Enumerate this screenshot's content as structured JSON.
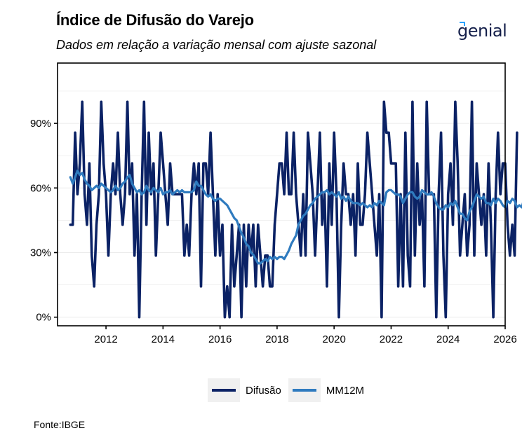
{
  "header": {
    "title": "Índice de Difusão do Varejo",
    "subtitle": "Dados em relação a variação mensal com ajuste sazonal",
    "logo_text": "genial"
  },
  "footer": {
    "source": "Fonte:IBGE"
  },
  "colors": {
    "difusao": "#0b2265",
    "mm12m": "#2f7bbf",
    "axis": "#000000",
    "grid": "#ebebeb",
    "legend_bg": "#f0f0f0"
  },
  "chart_data": {
    "type": "line",
    "title": "Índice de Difusão do Varejo",
    "subtitle": "Dados em relação a variação mensal com ajuste sazonal",
    "xlabel": "",
    "ylabel": "",
    "x_start": "2010-10",
    "x_frequency": "monthly",
    "xlim": [
      2010.3,
      2026.0
    ],
    "ylim": [
      -4,
      118
    ],
    "x_ticks": [
      2012,
      2014,
      2016,
      2018,
      2020,
      2022,
      2024,
      2026
    ],
    "x_tick_labels": [
      "2012",
      "2014",
      "2016",
      "2018",
      "2020",
      "2022",
      "2024",
      "2026"
    ],
    "y_ticks": [
      0,
      30,
      60,
      90
    ],
    "y_tick_labels": [
      "0%",
      "30%",
      "60%",
      "90%"
    ],
    "grid": true,
    "legend": {
      "position": "bottom",
      "entries": [
        "Difusão",
        "MM12M"
      ]
    },
    "series": [
      {
        "name": "Difusão",
        "values": [
          42.9,
          42.9,
          85.7,
          57.1,
          71.4,
          100,
          57.1,
          42.9,
          71.4,
          28.6,
          14.3,
          42.9,
          57.1,
          100,
          71.4,
          57.1,
          28.6,
          57.1,
          71.4,
          57.1,
          85.7,
          57.1,
          42.9,
          57.1,
          100,
          57.1,
          71.4,
          28.6,
          57.1,
          0,
          57.1,
          100,
          42.9,
          85.7,
          57.1,
          71.4,
          28.6,
          57.1,
          85.7,
          71.4,
          57.1,
          42.9,
          71.4,
          57.1,
          57.1,
          57.1,
          57.1,
          57.1,
          28.6,
          42.9,
          28.6,
          57.1,
          71.4,
          57.1,
          71.4,
          14.3,
          71.4,
          71.4,
          57.1,
          85.7,
          57.1,
          28.6,
          57.1,
          28.6,
          42.9,
          0,
          14.3,
          0,
          42.9,
          14.3,
          28.6,
          42.9,
          0,
          42.9,
          14.3,
          42.9,
          28.6,
          42.9,
          14.3,
          42.9,
          28.6,
          14.3,
          28.6,
          28.6,
          14.3,
          14.3,
          42.9,
          57.1,
          71.4,
          71.4,
          57.1,
          85.7,
          57.1,
          57.1,
          85.7,
          57.1,
          42.9,
          28.6,
          57.1,
          28.6,
          85.7,
          71.4,
          57.1,
          28.6,
          57.1,
          85.7,
          42.9,
          57.1,
          14.3,
          71.4,
          42.9,
          85.7,
          57.1,
          0,
          42.9,
          71.4,
          57.1,
          57.1,
          42.9,
          57.1,
          28.6,
          71.4,
          42.9,
          42.9,
          57.1,
          85.7,
          71.4,
          57.1,
          42.9,
          28.6,
          57.1,
          0,
          100,
          85.7,
          85.7,
          71.4,
          71.4,
          71.4,
          14.3,
          57.1,
          14.3,
          85.7,
          28.6,
          14.3,
          100,
          28.6,
          71.4,
          42.9,
          57.1,
          14.3,
          100,
          57.1,
          57.1,
          57.1,
          0,
          57.1,
          85.7,
          28.6,
          0,
          57.1,
          71.4,
          42.9,
          100,
          71.4,
          28.6,
          42.9,
          57.1,
          28.6,
          42.9,
          100,
          28.6,
          71.4,
          57.1,
          42.9,
          57.1,
          28.6,
          71.4,
          42.9,
          0,
          57.1,
          85.7,
          57.1,
          71.4,
          71.4,
          42.9,
          28.6,
          42.9,
          28.6,
          85.7
        ],
        "color": "#0b2265"
      },
      {
        "name": "MM12M",
        "values": [
          65,
          62,
          65,
          68,
          66,
          67,
          64,
          62,
          61,
          59,
          60,
          61,
          60,
          62,
          61,
          60,
          59,
          58,
          59,
          61,
          59,
          60,
          62,
          63,
          65,
          66,
          62,
          60,
          58,
          59,
          57,
          58,
          61,
          59,
          58,
          60,
          59,
          58,
          60,
          57,
          58,
          58,
          59,
          57,
          58,
          59,
          58,
          59,
          58,
          58,
          58,
          58,
          59,
          63,
          61,
          61,
          59,
          57,
          56,
          57,
          55,
          54,
          55,
          55,
          54,
          53,
          52,
          50,
          48,
          46,
          45,
          42,
          39,
          37,
          34,
          33,
          30,
          29,
          27,
          25,
          25,
          26,
          27,
          26,
          28,
          27,
          28,
          27,
          28,
          28,
          27,
          29,
          31,
          34,
          36,
          38,
          43,
          45,
          47,
          48,
          50,
          52,
          53,
          55,
          56,
          57,
          58,
          58,
          59,
          57,
          58,
          57,
          56,
          58,
          55,
          56,
          54,
          56,
          54,
          53,
          53,
          53,
          52,
          53,
          52,
          51,
          52,
          51,
          53,
          52,
          54,
          53,
          52,
          58,
          59,
          59,
          58,
          57,
          57,
          56,
          53,
          55,
          57,
          58,
          58,
          56,
          55,
          56,
          59,
          58,
          57,
          57,
          58,
          56,
          53,
          51,
          50,
          50,
          52,
          51,
          53,
          52,
          54,
          51,
          48,
          48,
          46,
          45,
          49,
          51,
          54,
          57,
          56,
          55,
          56,
          53,
          53,
          52,
          55,
          53,
          55,
          54,
          52,
          51,
          54,
          53,
          55,
          54,
          51,
          52,
          51,
          55
        ]
      }
    ]
  }
}
